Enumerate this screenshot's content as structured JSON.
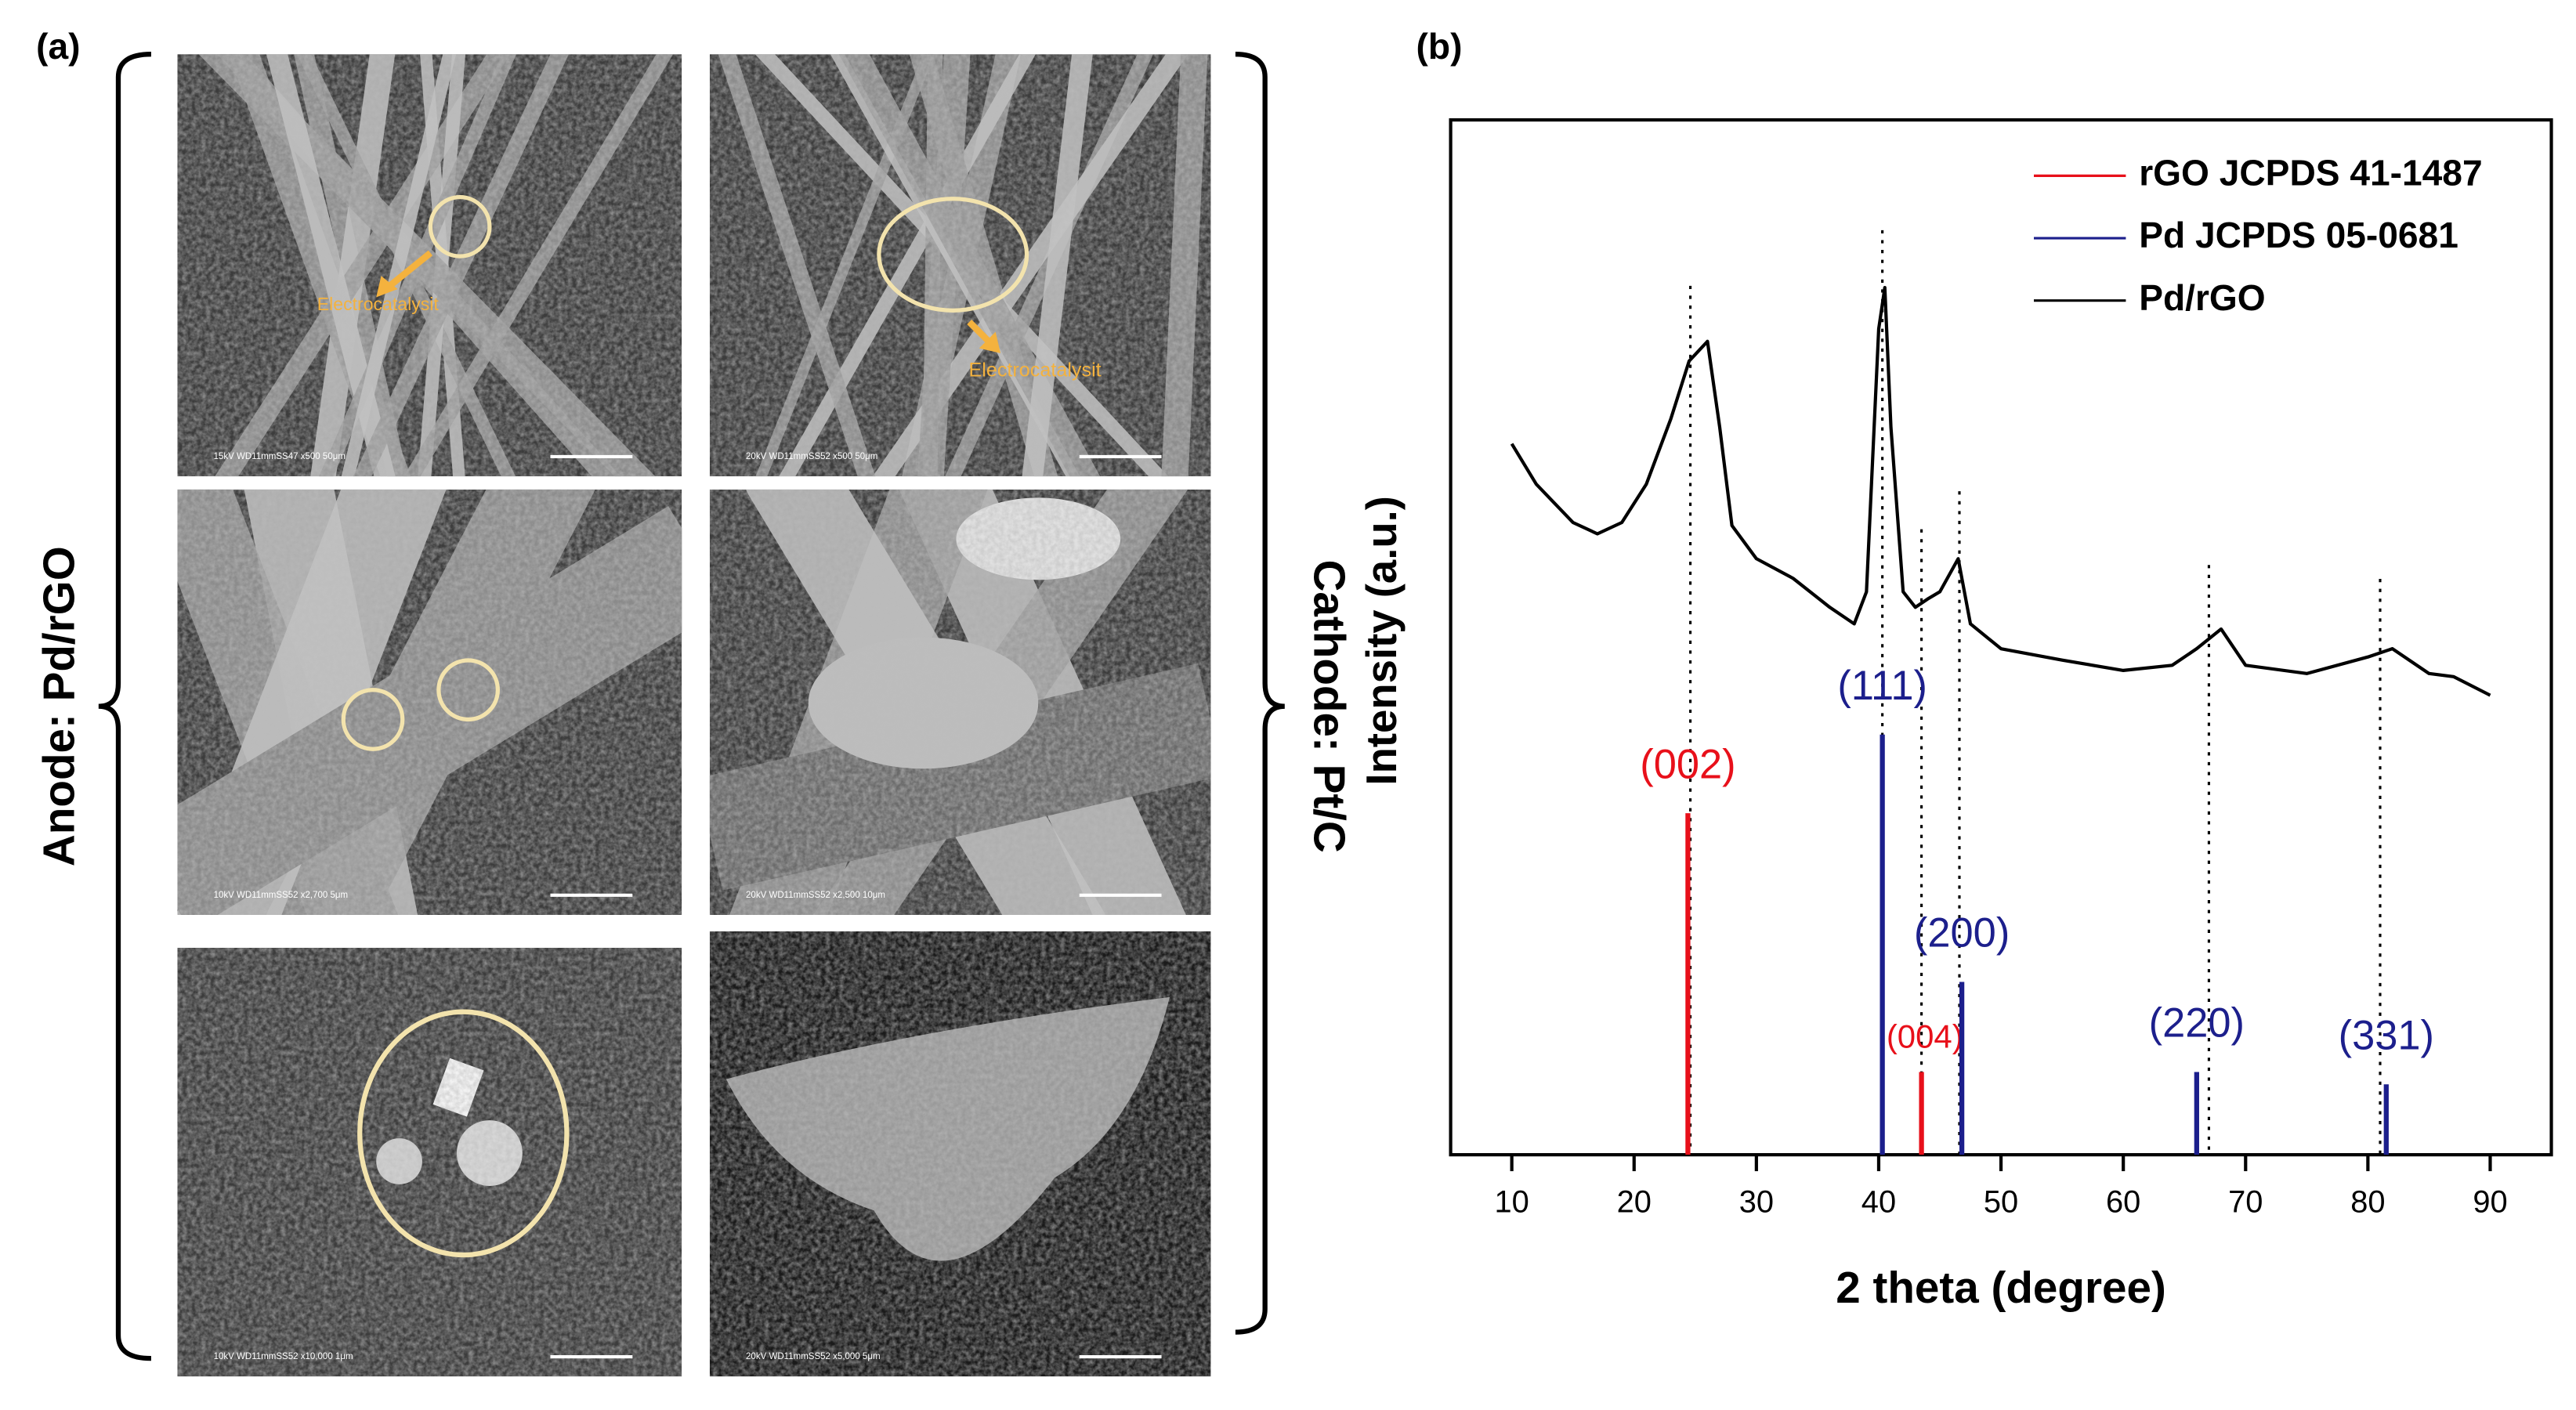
{
  "panel_a": {
    "label": "(a)",
    "anode_label": "Anode: Pd/rGO",
    "cathode_label": "Cathode: Pt/C",
    "annotations": [
      "Electrocatalysit",
      "Electrocatalysit"
    ],
    "captions": [
      "15kV WD11mmSS47 x500 50μm",
      "20kV WD11mmSS52 x500 50μm",
      "10kV WD11mmSS52 x2,700 5μm",
      "20kV WD11mmSS52 x2,500 10μm",
      "10kV WD11mmSS52 x10,000 1μm",
      "20kV WD11mmSS52 x5,000 5μm"
    ]
  },
  "chart_data": {
    "type": "xrd",
    "panel_label": "(b)",
    "xlabel": "2 theta (degree)",
    "ylabel": "Intensity (a.u.)",
    "xlim": [
      5,
      95
    ],
    "ylim": [
      0,
      100
    ],
    "xticks": [
      10,
      20,
      30,
      40,
      50,
      60,
      70,
      80,
      90
    ],
    "legend": "upper right",
    "guide_x": [
      24.6,
      40.3,
      43.5,
      46.6,
      67,
      81
    ],
    "series": [
      {
        "name": "rGO JCPDS 41-1487",
        "color": "#e8101a",
        "kind": "sticks",
        "x": [
          24.4,
          43.5
        ],
        "values": [
          33,
          8
        ],
        "peak_labels": [
          "(002)",
          "(004)"
        ]
      },
      {
        "name": "Pd JCPDS 05-0681",
        "color": "#1c1f8c",
        "kind": "sticks",
        "x": [
          40.3,
          46.8,
          66,
          81.5
        ],
        "values": [
          40.6,
          16.7,
          8,
          6.8
        ],
        "peak_labels": [
          "(111)",
          "(200)",
          "(220)",
          "(331)"
        ]
      },
      {
        "name": "Pd/rGO",
        "color": "#000000",
        "kind": "line",
        "x": [
          10,
          12,
          15,
          17,
          19,
          21,
          23,
          24.5,
          26,
          27,
          28,
          30,
          33,
          36,
          38,
          39,
          40,
          40.5,
          41,
          42,
          43,
          44,
          45,
          46.5,
          47.5,
          50,
          55,
          60,
          64,
          66,
          68,
          70,
          75,
          80,
          82,
          85,
          87,
          90
        ],
        "values": [
          68.7,
          64.8,
          61.1,
          60,
          61.1,
          64.8,
          71.1,
          76.7,
          78.6,
          70.3,
          60.8,
          57.6,
          55.7,
          52.9,
          51.3,
          54.4,
          79.8,
          83.8,
          70.3,
          54.4,
          52.9,
          53.7,
          54.4,
          57.6,
          51.3,
          48.9,
          47.8,
          46.8,
          47.3,
          48.9,
          50.8,
          47.3,
          46.5,
          48.1,
          48.9,
          46.5,
          46.2,
          44.4
        ]
      }
    ]
  }
}
